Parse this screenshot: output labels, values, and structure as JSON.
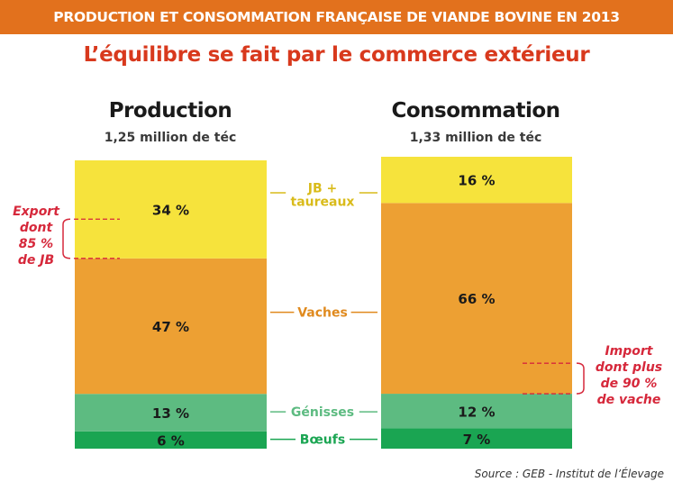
{
  "header": {
    "title": "PRODUCTION ET CONSOMMATION FRANÇAISE DE VIANDE BOVINE EN 2013",
    "subtitle": "L’équilibre se fait par le commerce extérieur"
  },
  "colors": {
    "header_band": "#e2711d",
    "subtitle": "#d8391d",
    "jb_taureaux": "#f6e33c",
    "vaches": "#eda033",
    "genisses": "#5dbb81",
    "boeufs": "#1aa552",
    "annotation": "#d6283b"
  },
  "chart_data": {
    "type": "stacked-bar",
    "categories": [
      "Production",
      "Consommation"
    ],
    "totals": [
      "1,25 million de téc",
      "1,33 million de téc"
    ],
    "series": [
      {
        "name": "Bœufs",
        "values": [
          6,
          7
        ],
        "labels": [
          "6 %",
          "7 %"
        ],
        "color": "#1aa552",
        "label_color": "#1aa552"
      },
      {
        "name": "Génisses",
        "values": [
          13,
          12
        ],
        "labels": [
          "13 %",
          "12 %"
        ],
        "color": "#5dbb81",
        "label_color": "#5dbb81"
      },
      {
        "name": "Vaches",
        "values": [
          47,
          66
        ],
        "labels": [
          "47 %",
          "66 %"
        ],
        "color": "#eda033",
        "label_color": "#e08a1e"
      },
      {
        "name_lines": [
          "JB +",
          "taureaux"
        ],
        "values": [
          34,
          16
        ],
        "labels": [
          "34 %",
          "16 %"
        ],
        "color": "#f6e33c",
        "label_color": "#d9bb1a"
      }
    ],
    "annotations": [
      {
        "column": 0,
        "lines": [
          "Export",
          "dont",
          "85 %",
          "de JB"
        ]
      },
      {
        "column": 1,
        "lines": [
          "Import",
          "dont plus",
          "de 90 %",
          "de vache"
        ]
      }
    ]
  },
  "source": "Source : GEB - Institut de l’Élevage"
}
